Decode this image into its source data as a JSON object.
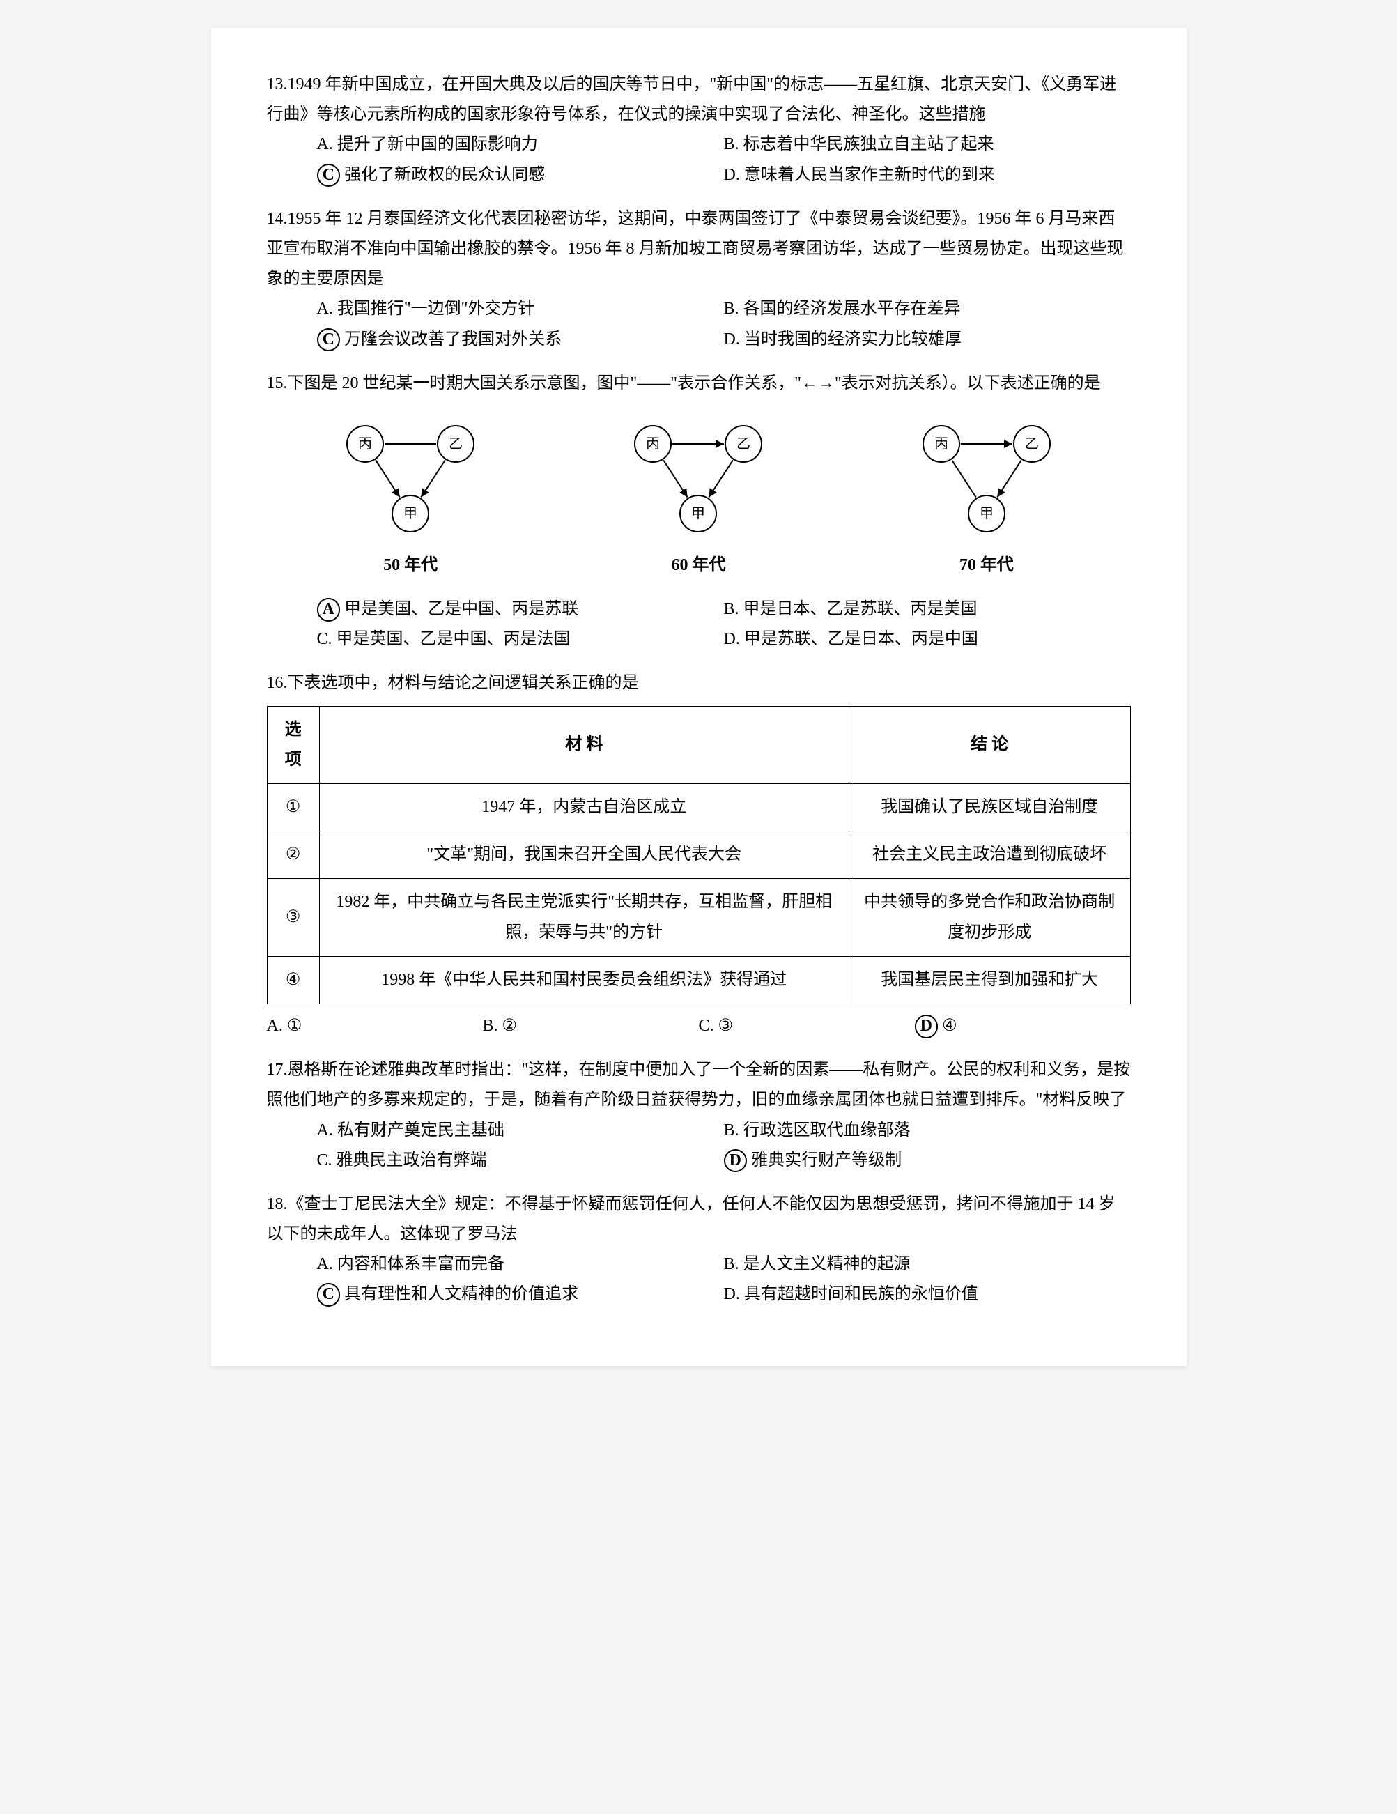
{
  "q13": {
    "number": "13.",
    "stem": "1949 年新中国成立，在开国大典及以后的国庆等节日中，\"新中国\"的标志——五星红旗、北京天安门、《义勇军进行曲》等核心元素所构成的国家形象符号体系，在仪式的操演中实现了合法化、神圣化。这些措施",
    "optA": "A. 提升了新中国的国际影响力",
    "optB": "B. 标志着中华民族独立自主站了起来",
    "optC": "强化了新政权的民众认同感",
    "optC_letter": "C",
    "optD": "D. 意味着人民当家作主新时代的到来"
  },
  "q14": {
    "number": "14.",
    "stem": "1955 年 12 月泰国经济文化代表团秘密访华，这期间，中泰两国签订了《中泰贸易会谈纪要》。1956 年 6 月马来西亚宣布取消不准向中国输出橡胶的禁令。1956 年 8 月新加坡工商贸易考察团访华，达成了一些贸易协定。出现这些现象的主要原因是",
    "optA": "A. 我国推行\"一边倒\"外交方针",
    "optB": "B. 各国的经济发展水平存在差异",
    "optC": "万隆会议改善了我国对外关系",
    "optC_letter": "C",
    "optD": "D. 当时我国的经济实力比较雄厚"
  },
  "q15": {
    "number": "15.",
    "stem_intro": "下图是 20 世纪某一时期大国关系示意图，图中\"——\"表示合作关系，\"←→\"表示对抗关系）。以下表述正确的是",
    "diagrams": [
      {
        "caption": "50 年代",
        "nodes": [
          "丙",
          "乙",
          "甲"
        ],
        "edges": [
          {
            "a": 0,
            "b": 1,
            "type": "solid"
          },
          {
            "a": 0,
            "b": 2,
            "type": "arrow"
          },
          {
            "a": 1,
            "b": 2,
            "type": "arrow"
          }
        ]
      },
      {
        "caption": "60 年代",
        "nodes": [
          "丙",
          "乙",
          "甲"
        ],
        "edges": [
          {
            "a": 0,
            "b": 1,
            "type": "arrow"
          },
          {
            "a": 0,
            "b": 2,
            "type": "arrow"
          },
          {
            "a": 1,
            "b": 2,
            "type": "arrow"
          }
        ]
      },
      {
        "caption": "70 年代",
        "nodes": [
          "丙",
          "乙",
          "甲"
        ],
        "edges": [
          {
            "a": 0,
            "b": 1,
            "type": "arrow"
          },
          {
            "a": 0,
            "b": 2,
            "type": "solid"
          },
          {
            "a": 1,
            "b": 2,
            "type": "arrow"
          }
        ]
      }
    ],
    "optA": "甲是美国、乙是中国、丙是苏联",
    "optA_letter": "A",
    "optB": "B. 甲是日本、乙是苏联、丙是美国",
    "optC": "C. 甲是英国、乙是中国、丙是法国",
    "optD": "D. 甲是苏联、乙是日本、丙是中国"
  },
  "q16": {
    "number": "16.",
    "stem": "下表选项中，材料与结论之间逻辑关系正确的是",
    "headers": [
      "选项",
      "材 料",
      "结 论"
    ],
    "rows": [
      {
        "opt": "①",
        "material": "1947 年，内蒙古自治区成立",
        "conclusion": "我国确认了民族区域自治制度"
      },
      {
        "opt": "②",
        "material": "\"文革\"期间，我国未召开全国人民代表大会",
        "conclusion": "社会主义民主政治遭到彻底破坏"
      },
      {
        "opt": "③",
        "material": "1982 年，中共确立与各民主党派实行\"长期共存，互相监督，肝胆相照，荣辱与共\"的方针",
        "conclusion": "中共领导的多党合作和政治协商制度初步形成"
      },
      {
        "opt": "④",
        "material": "1998 年《中华人民共和国村民委员会组织法》获得通过",
        "conclusion": "我国基层民主得到加强和扩大"
      }
    ],
    "optA": "A. ①",
    "optB": "B. ②",
    "optC": "C. ③",
    "optD": "④",
    "optD_letter": "D"
  },
  "q17": {
    "number": "17.",
    "stem": "恩格斯在论述雅典改革时指出：\"这样，在制度中便加入了一个全新的因素——私有财产。公民的权利和义务，是按照他们地产的多寡来规定的，于是，随着有产阶级日益获得势力，旧的血缘亲属团体也就日益遭到排斥。\"材料反映了",
    "optA": "A. 私有财产奠定民主基础",
    "optB": "B. 行政选区取代血缘部落",
    "optC": "C. 雅典民主政治有弊端",
    "optD": "雅典实行财产等级制",
    "optD_letter": "D"
  },
  "q18": {
    "number": "18.",
    "stem": "《查士丁尼民法大全》规定：不得基于怀疑而惩罚任何人，任何人不能仅因为思想受惩罚，拷问不得施加于 14 岁以下的未成年人。这体现了罗马法",
    "optA": "A. 内容和体系丰富而完备",
    "optB": "B. 是人文主义精神的起源",
    "optC": "具有理性和人文精神的价值追求",
    "optC_letter": "C",
    "optD": "D. 具有超越时间和民族的永恒价值"
  }
}
